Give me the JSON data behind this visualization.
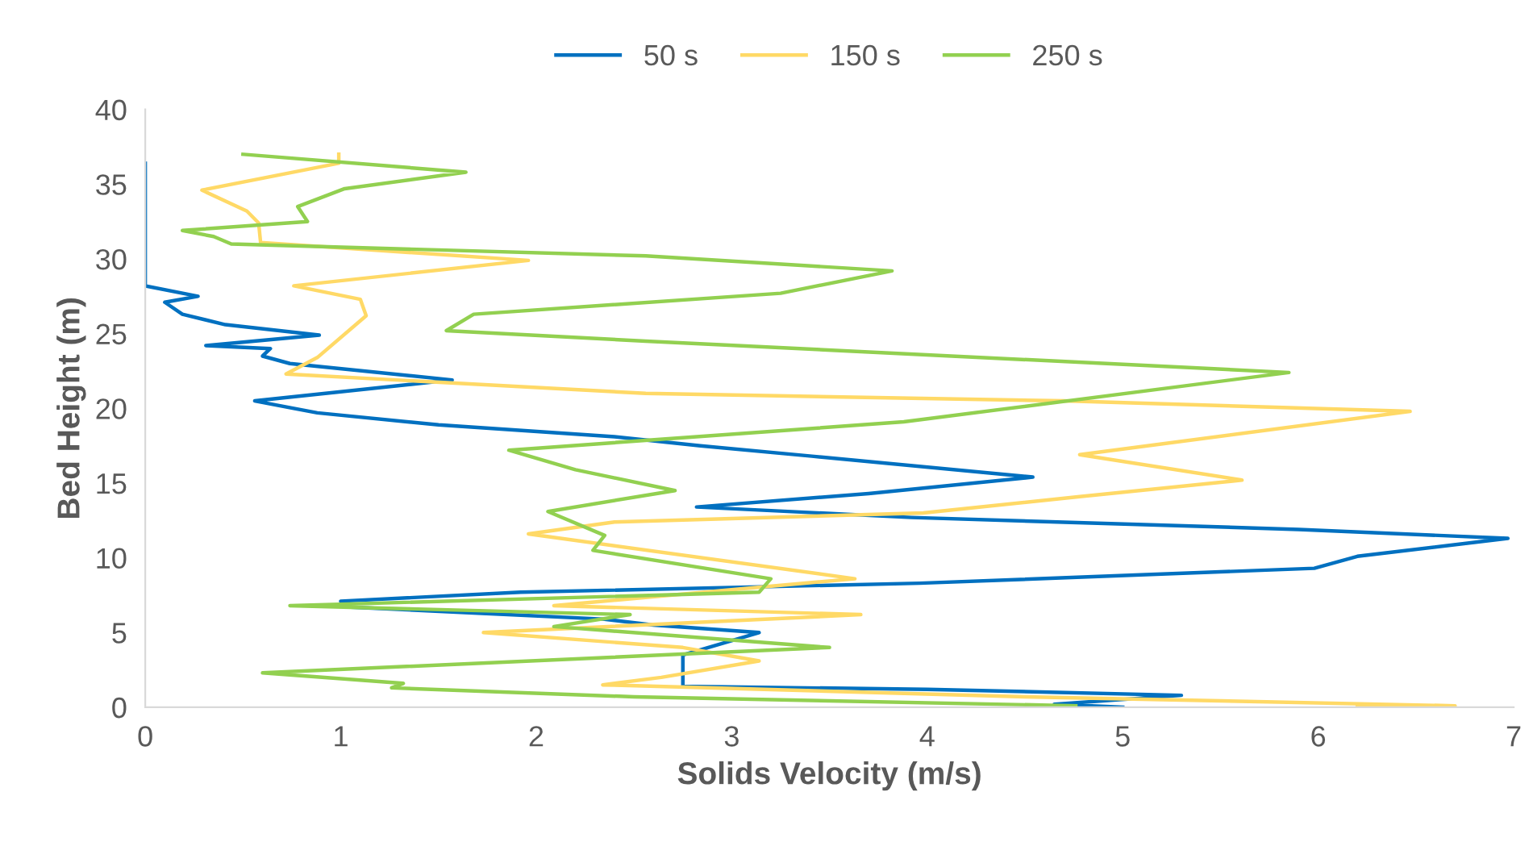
{
  "chart_data": {
    "type": "line",
    "xlabel": "Solids Velocity (m/s)",
    "ylabel": "Bed Height (m)",
    "xlim": [
      0,
      7
    ],
    "xticks": [
      0,
      1,
      2,
      3,
      4,
      5,
      6,
      7
    ],
    "ylim": [
      0,
      40
    ],
    "yticks": [
      0,
      5,
      10,
      15,
      20,
      25,
      30,
      35,
      40
    ],
    "grid": false,
    "legend": "top",
    "series": [
      {
        "name": "50 s",
        "color": "#0070c0",
        "x": [
          5.0,
          4.65,
          5.3,
          4.0,
          2.75,
          2.75,
          2.75,
          3.14,
          2.6,
          2.34,
          1.05,
          1.0,
          1.92,
          3.96,
          5.98,
          6.2,
          6.97,
          5.9,
          3.92,
          2.82,
          3.7,
          4.54,
          3.41,
          2.84,
          2.4,
          1.5,
          0.88,
          0.56,
          1.57,
          0.74,
          0.6,
          0.64,
          0.31,
          0.89,
          0.41,
          0.19,
          0.1,
          0.27,
          0.0,
          0.0
        ],
        "values": [
          0.0,
          0.2,
          0.8,
          1.2,
          1.4,
          2.8,
          3.5,
          5.0,
          5.5,
          5.9,
          6.7,
          7.1,
          7.7,
          8.3,
          9.3,
          10.1,
          11.3,
          11.9,
          12.7,
          13.4,
          14.3,
          15.4,
          16.8,
          17.5,
          18.1,
          18.9,
          19.7,
          20.5,
          21.9,
          23.0,
          23.5,
          24.0,
          24.2,
          24.9,
          25.6,
          26.3,
          27.1,
          27.5,
          28.2,
          36.4
        ]
      },
      {
        "name": "150 s",
        "color": "#ffd966",
        "x": [
          6.2,
          6.7,
          4.5,
          2.34,
          2.64,
          3.14,
          2.75,
          1.73,
          3.66,
          2.09,
          3.63,
          1.96,
          2.4,
          3.98,
          4.78,
          5.61,
          4.78,
          6.47,
          4.7,
          2.56,
          0.72,
          0.88,
          1.13,
          1.1,
          0.76,
          1.96,
          0.59,
          0.58,
          0.52,
          0.29,
          0.99,
          0.99
        ],
        "values": [
          0.0,
          0.1,
          0.7,
          1.5,
          2.0,
          3.1,
          4.0,
          5.0,
          6.2,
          6.8,
          8.6,
          11.6,
          12.4,
          13.0,
          14.1,
          15.2,
          16.9,
          19.8,
          20.5,
          21.0,
          22.3,
          23.4,
          26.2,
          27.3,
          28.2,
          29.9,
          31.1,
          32.4,
          33.2,
          34.6,
          36.4,
          37.0
        ]
      },
      {
        "name": "250 s",
        "color": "#92d050",
        "x": [
          4.76,
          2.5,
          1.26,
          1.32,
          0.6,
          3.5,
          2.09,
          2.48,
          0.74,
          3.14,
          3.2,
          2.29,
          2.35,
          2.06,
          2.71,
          2.2,
          1.86,
          3.88,
          5.85,
          2.56,
          1.54,
          1.68,
          3.25,
          3.82,
          2.56,
          0.44,
          0.35,
          0.19,
          0.83,
          0.78,
          1.02,
          1.64,
          0.5
        ],
        "values": [
          0.1,
          0.7,
          1.3,
          1.6,
          2.3,
          4.0,
          5.4,
          6.2,
          6.8,
          7.7,
          8.6,
          10.5,
          11.5,
          13.1,
          14.5,
          15.9,
          17.2,
          19.1,
          22.4,
          24.5,
          25.2,
          26.3,
          27.7,
          29.2,
          30.2,
          31.0,
          31.5,
          31.9,
          32.5,
          33.5,
          34.7,
          35.8,
          37.0
        ]
      }
    ]
  }
}
